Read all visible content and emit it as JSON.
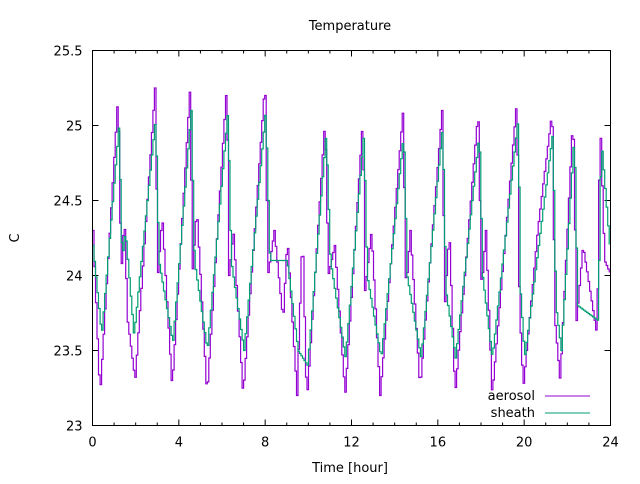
{
  "chart_data": {
    "type": "line",
    "title": "Temperature",
    "xlabel": "Time [hour]",
    "ylabel": "C",
    "xlim": [
      0,
      24
    ],
    "ylim": [
      23,
      25.5
    ],
    "xticks": [
      "0",
      "4",
      "8",
      "12",
      "16",
      "20",
      "24"
    ],
    "yticks": [
      "23",
      "23.5",
      "24",
      "24.5",
      "25",
      "25.5"
    ],
    "legend_position": "bottom-right",
    "series": [
      {
        "name": "aerosol",
        "color": "#9400d3",
        "x": [
          0,
          0.32,
          1.16,
          1.3,
          1.45,
          1.6,
          1.95,
          2.87,
          3.0,
          3.2,
          3.66,
          4.5,
          4.6,
          4.8,
          5.28,
          6.2,
          6.3,
          6.5,
          6.95,
          7.97,
          8.1,
          8.4,
          8.8,
          9.0,
          9.45,
          9.7,
          9.9,
          10.75,
          10.9,
          11.2,
          11.68,
          12.5,
          12.6,
          12.9,
          13.3,
          14.36,
          14.5,
          14.7,
          15.15,
          16.17,
          16.3,
          16.5,
          16.77,
          17.84,
          18.0,
          18.2,
          18.49,
          19.64,
          19.75,
          19.93,
          20.6,
          21.27,
          21.4,
          21.64,
          22.24,
          22.4,
          22.7,
          23.35,
          23.49,
          23.7,
          24
        ],
        "y": [
          24.3,
          23.2,
          25.22,
          24.0,
          24.4,
          23.7,
          23.3,
          25.25,
          24.0,
          24.4,
          23.25,
          25.27,
          24.0,
          24.45,
          23.2,
          25.29,
          24.0,
          24.3,
          23.2,
          25.3,
          24.0,
          24.3,
          23.7,
          24.25,
          23.2,
          24.3,
          23.15,
          25.05,
          24.0,
          24.2,
          23.2,
          25.05,
          23.9,
          24.3,
          23.2,
          25.1,
          23.9,
          24.3,
          23.25,
          25.1,
          23.8,
          24.3,
          23.2,
          25.1,
          23.9,
          24.3,
          23.2,
          25.18,
          23.8,
          23.25,
          24.3,
          25.1,
          23.7,
          23.3,
          25.08,
          23.7,
          24.2,
          23.6,
          25.05,
          24.1,
          24.0
        ]
      },
      {
        "name": "sheath",
        "color": "#009e73",
        "x": [
          0,
          0.4,
          1.2,
          1.35,
          1.5,
          1.9,
          2.9,
          3.05,
          3.7,
          4.55,
          4.7,
          5.3,
          6.25,
          6.4,
          7.0,
          8.0,
          8.2,
          9.0,
          9.5,
          9.95,
          10.8,
          11.0,
          11.7,
          12.55,
          12.7,
          13.35,
          14.4,
          14.55,
          15.2,
          16.2,
          16.35,
          16.8,
          17.9,
          18.05,
          18.5,
          19.7,
          19.8,
          20.0,
          21.3,
          21.45,
          21.7,
          22.3,
          22.45,
          23.4,
          23.55,
          24
        ],
        "y": [
          24.2,
          23.6,
          25.0,
          24.1,
          24.3,
          23.6,
          25.05,
          24.1,
          23.55,
          25.1,
          24.1,
          23.5,
          25.1,
          24.1,
          23.5,
          25.1,
          24.1,
          24.1,
          23.5,
          23.4,
          24.95,
          24.1,
          23.45,
          24.95,
          24.0,
          23.45,
          24.95,
          24.0,
          23.45,
          25.0,
          23.9,
          23.45,
          24.95,
          24.0,
          23.45,
          25.05,
          23.9,
          23.45,
          24.95,
          23.8,
          23.5,
          24.95,
          23.8,
          23.7,
          24.9,
          24.1
        ]
      }
    ]
  }
}
